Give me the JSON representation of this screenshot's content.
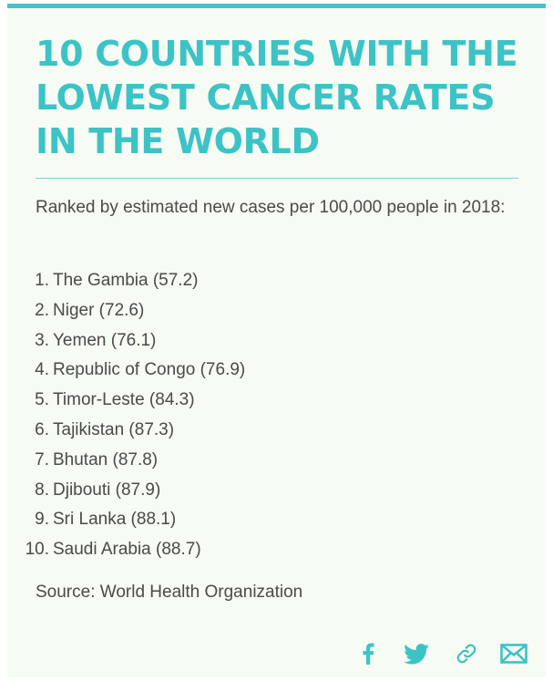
{
  "title": "10 COUNTRIES WITH THE LOWEST CANCER RATES IN THE WORLD",
  "subtitle": "Ranked by estimated new cases per 100,000 people in 2018:",
  "ranking": [
    {
      "rank": "1.",
      "text": "The Gambia (57.2)"
    },
    {
      "rank": "2.",
      "text": "Niger (72.6)"
    },
    {
      "rank": "3.",
      "text": "Yemen (76.1)"
    },
    {
      "rank": "4.",
      "text": "Republic of Congo (76.9)"
    },
    {
      "rank": "5.",
      "text": "Timor-Leste (84.3)"
    },
    {
      "rank": "6.",
      "text": "Tajikistan (87.3)"
    },
    {
      "rank": "7.",
      "text": "Bhutan (87.8)"
    },
    {
      "rank": "8.",
      "text": "Djibouti (87.9)"
    },
    {
      "rank": "9.",
      "text": "Sri Lanka (88.1)"
    },
    {
      "rank": "10.",
      "text": "Saudi Arabia (88.7)"
    }
  ],
  "source": "Source: World Health Organization",
  "share_icons": [
    "facebook-icon",
    "twitter-icon",
    "link-icon",
    "email-icon"
  ],
  "colors": {
    "accent": "#3cc3c6",
    "background": "#f6fbf3",
    "text": "#4a4a4a"
  }
}
